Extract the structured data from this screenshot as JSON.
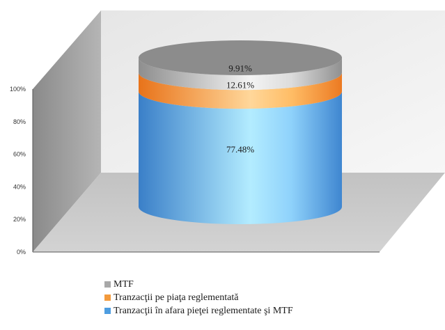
{
  "chart_data": {
    "type": "bar",
    "stacked": true,
    "percent": true,
    "style": "3d-cylinder",
    "categories": [
      ""
    ],
    "series": [
      {
        "name": "Tranzacţii în afara pieţei reglementate şi MTF",
        "values": [
          77.48
        ],
        "label": "77.48%",
        "color": "#4d9de0"
      },
      {
        "name": "Tranzacţii pe piaţa reglementată",
        "values": [
          12.61
        ],
        "label": "12.61%",
        "color": "#f39a3c"
      },
      {
        "name": "MTF",
        "values": [
          9.91
        ],
        "label": "9.91%",
        "color": "#a8a8a8"
      }
    ],
    "yticks": [
      "0%",
      "20%",
      "40%",
      "60%",
      "80%",
      "100%"
    ],
    "ylim": [
      0,
      100
    ],
    "legend_position": "bottom",
    "grid": false
  },
  "legend": [
    {
      "label": "MTF",
      "color": "#a8a8a8"
    },
    {
      "label": "Tranzacţii pe piaţa reglementată",
      "color": "#f39a3c"
    },
    {
      "label": "Tranzacţii în afara pieţei reglementate şi MTF",
      "color": "#4d9de0"
    }
  ]
}
